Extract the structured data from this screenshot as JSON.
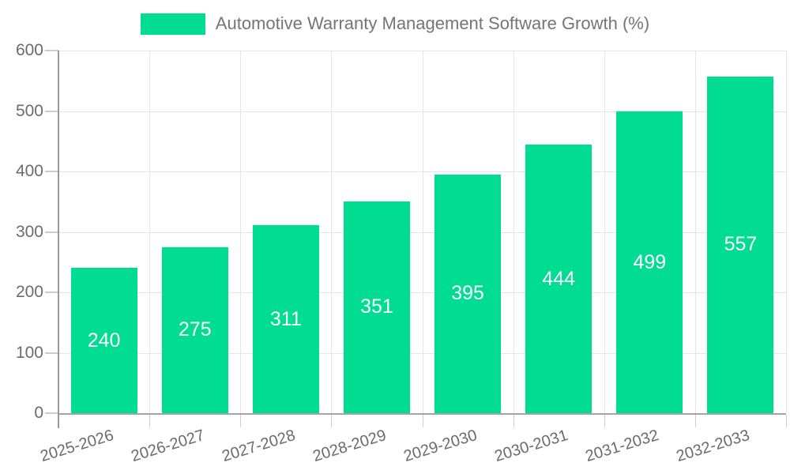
{
  "chart_data": {
    "type": "bar",
    "title": "Automotive Warranty Management Software Growth (%)",
    "categories": [
      "2025-2026",
      "2026-2027",
      "2027-2028",
      "2028-2029",
      "2029-2030",
      "2030-2031",
      "2031-2032",
      "2032-2033"
    ],
    "values": [
      240,
      275,
      311,
      351,
      395,
      444,
      499,
      557
    ],
    "xlabel": "",
    "ylabel": "",
    "ylim": [
      0,
      600
    ],
    "yticks": [
      0,
      100,
      200,
      300,
      400,
      500,
      600
    ],
    "grid": "horizontal and vertical light gridlines",
    "legend_position": "top-center",
    "bar_color": "#00dd92",
    "value_label_color": "#ffffff",
    "axis_label_color": "#6b6b6b",
    "legend_text_color": "#757575",
    "gridline_color": "#e5e5e5",
    "axis_line_color": "#a3a3a3",
    "tick_color": "#cccccc"
  }
}
